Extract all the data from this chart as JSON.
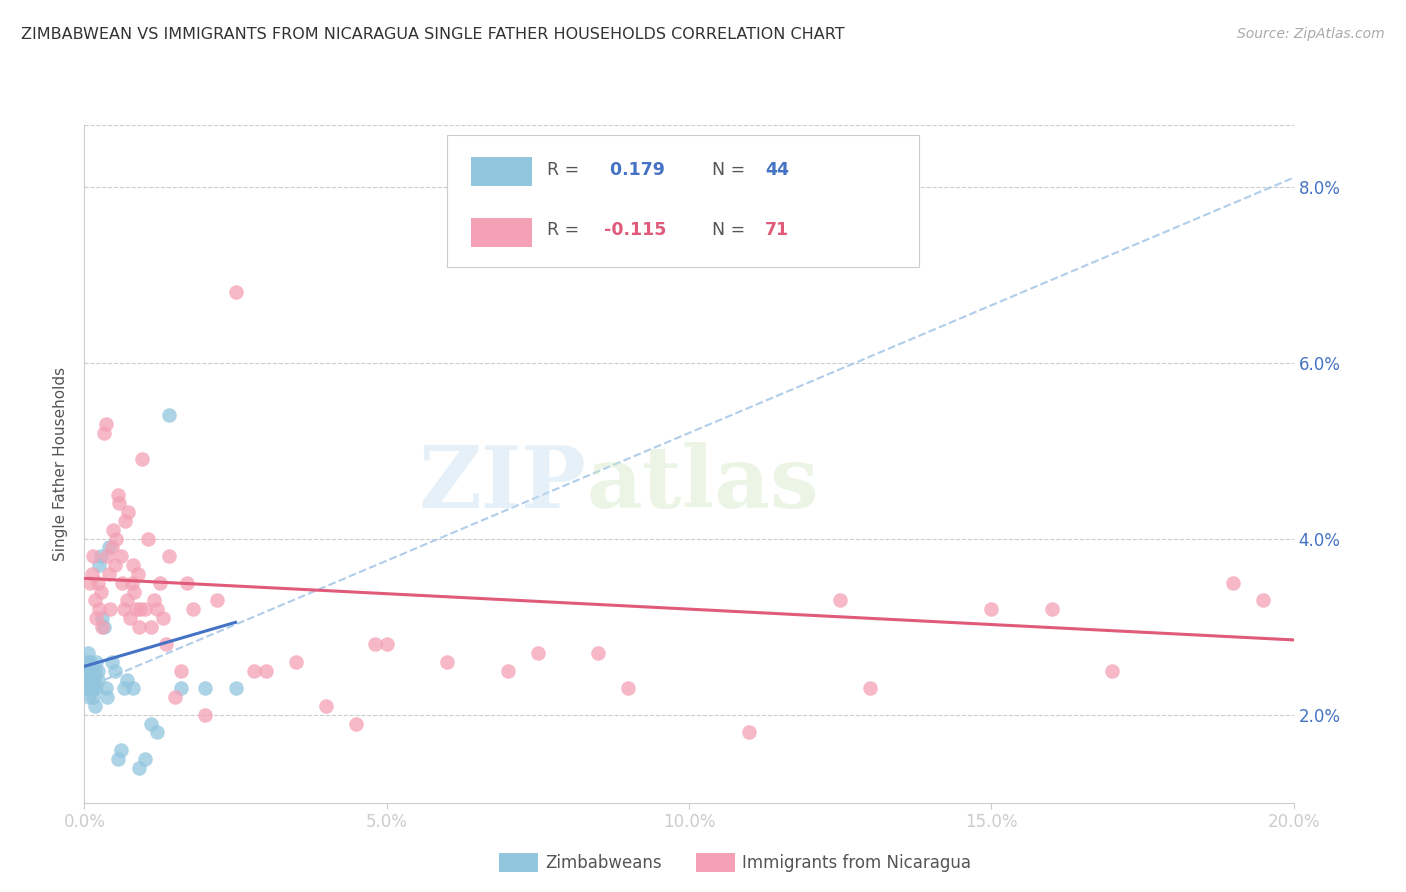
{
  "title": "ZIMBABWEAN VS IMMIGRANTS FROM NICARAGUA SINGLE FATHER HOUSEHOLDS CORRELATION CHART",
  "source": "Source: ZipAtlas.com",
  "ylabel": "Single Father Households",
  "xlabel_vals": [
    0.0,
    5.0,
    10.0,
    15.0,
    20.0
  ],
  "ylabel_vals": [
    2.0,
    4.0,
    6.0,
    8.0
  ],
  "xmin": 0.0,
  "xmax": 20.0,
  "ymin": 1.0,
  "ymax": 8.7,
  "R_zimbabwean": 0.179,
  "N_zimbabwean": 44,
  "R_nicaragua": -0.115,
  "N_nicaragua": 71,
  "color_zimbabwean": "#92c5de",
  "color_nicaragua": "#f4a0b5",
  "color_trend_zimbabwean": "#4472c4",
  "color_trend_nicaragua": "#e05a7a",
  "color_dashed": "#a8c8e8",
  "legend_label_zimbabwean": "Zimbabweans",
  "legend_label_nicaragua": "Immigrants from Nicaragua",
  "watermark_zip": "ZIP",
  "watermark_atlas": "atlas",
  "zimbabwean_x": [
    0.02,
    0.03,
    0.04,
    0.05,
    0.06,
    0.07,
    0.08,
    0.08,
    0.09,
    0.1,
    0.11,
    0.12,
    0.13,
    0.14,
    0.15,
    0.16,
    0.17,
    0.18,
    0.19,
    0.2,
    0.22,
    0.23,
    0.25,
    0.27,
    0.3,
    0.32,
    0.35,
    0.38,
    0.4,
    0.45,
    0.5,
    0.55,
    0.6,
    0.65,
    0.7,
    0.8,
    0.9,
    1.0,
    1.1,
    1.2,
    1.4,
    1.6,
    2.0,
    2.5
  ],
  "zimbabwean_y": [
    2.5,
    2.4,
    2.3,
    2.6,
    2.7,
    2.5,
    2.3,
    2.2,
    2.4,
    2.6,
    2.5,
    2.4,
    2.3,
    2.2,
    2.3,
    2.4,
    2.1,
    2.5,
    2.6,
    2.3,
    2.4,
    2.5,
    3.7,
    3.8,
    3.1,
    3.0,
    2.3,
    2.2,
    3.9,
    2.6,
    2.5,
    1.5,
    1.6,
    2.3,
    2.4,
    2.3,
    1.4,
    1.5,
    1.9,
    1.8,
    5.4,
    2.3,
    2.3,
    2.3
  ],
  "nicaragua_x": [
    0.1,
    0.12,
    0.15,
    0.18,
    0.2,
    0.22,
    0.25,
    0.28,
    0.3,
    0.32,
    0.35,
    0.38,
    0.4,
    0.42,
    0.45,
    0.48,
    0.5,
    0.52,
    0.55,
    0.58,
    0.6,
    0.62,
    0.65,
    0.68,
    0.7,
    0.72,
    0.75,
    0.78,
    0.8,
    0.82,
    0.85,
    0.88,
    0.9,
    0.92,
    0.95,
    1.0,
    1.05,
    1.1,
    1.15,
    1.2,
    1.25,
    1.3,
    1.35,
    1.4,
    1.5,
    1.6,
    1.7,
    1.8,
    2.0,
    2.2,
    2.5,
    2.8,
    3.0,
    3.5,
    4.0,
    4.5,
    5.0,
    6.0,
    7.5,
    9.0,
    11.0,
    13.0,
    15.0,
    17.0,
    19.0,
    19.5,
    7.0,
    8.5,
    12.5,
    16.0,
    4.8
  ],
  "nicaragua_y": [
    3.5,
    3.6,
    3.8,
    3.3,
    3.1,
    3.5,
    3.2,
    3.4,
    3.0,
    5.2,
    5.3,
    3.8,
    3.6,
    3.2,
    3.9,
    4.1,
    3.7,
    4.0,
    4.5,
    4.4,
    3.8,
    3.5,
    3.2,
    4.2,
    3.3,
    4.3,
    3.1,
    3.5,
    3.7,
    3.4,
    3.2,
    3.6,
    3.0,
    3.2,
    4.9,
    3.2,
    4.0,
    3.0,
    3.3,
    3.2,
    3.5,
    3.1,
    2.8,
    3.8,
    2.2,
    2.5,
    3.5,
    3.2,
    2.0,
    3.3,
    6.8,
    2.5,
    2.5,
    2.6,
    2.1,
    1.9,
    2.8,
    2.6,
    2.7,
    2.3,
    1.8,
    2.3,
    3.2,
    2.5,
    3.5,
    3.3,
    2.5,
    2.7,
    3.3,
    3.2,
    2.8
  ],
  "trend_zim_x0": 0.0,
  "trend_zim_x1": 2.5,
  "trend_zim_y0": 2.55,
  "trend_zim_y1": 3.05,
  "trend_nic_x0": 0.0,
  "trend_nic_x1": 20.0,
  "trend_nic_y0": 3.55,
  "trend_nic_y1": 2.85,
  "dash_x0": 0.0,
  "dash_x1": 20.0,
  "dash_y0": 2.3,
  "dash_y1": 8.1
}
